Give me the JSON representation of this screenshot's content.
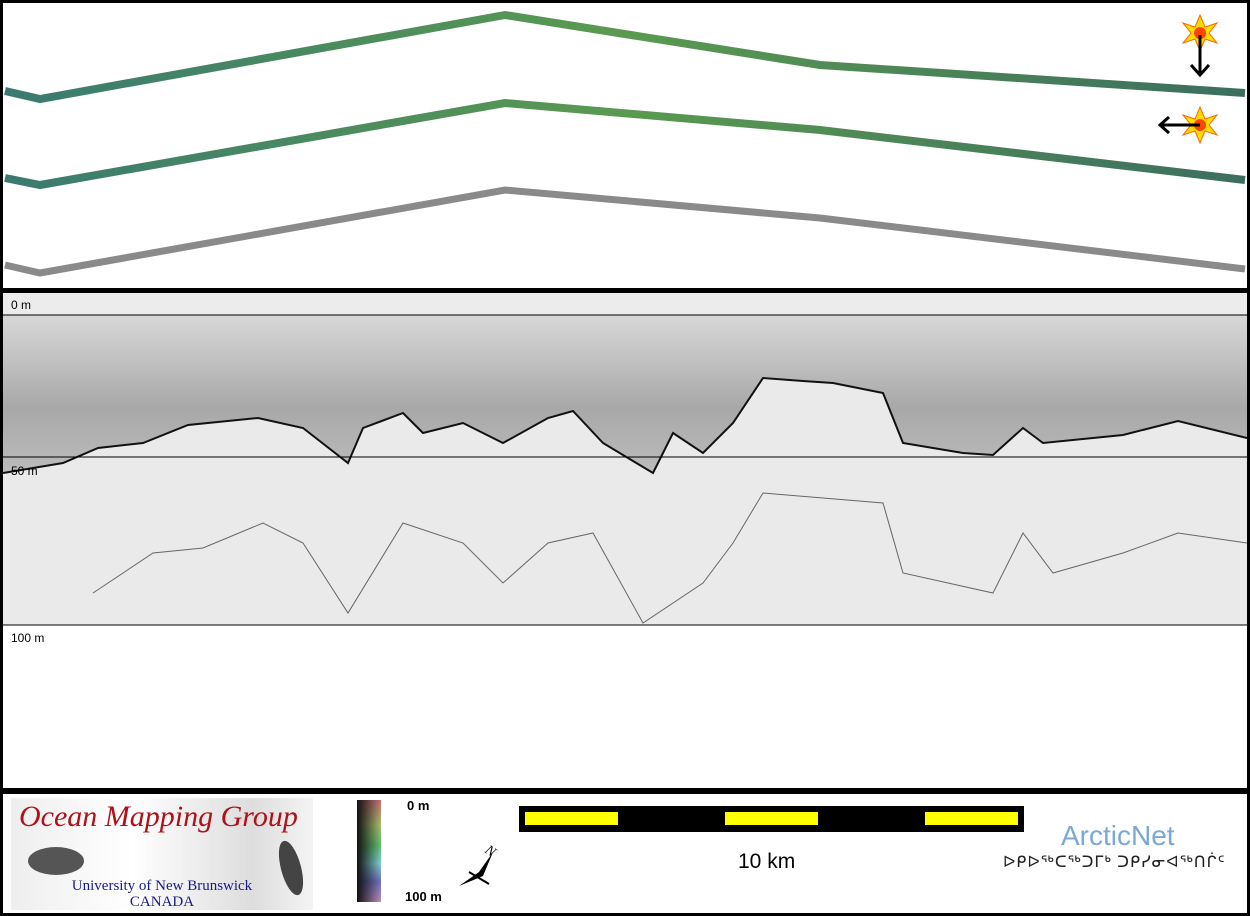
{
  "profile": {
    "depth_labels": [
      "0 m",
      "50 m",
      "100 m"
    ]
  },
  "legend": {
    "organization": "Ocean Mapping Group",
    "university": "University of New Brunswick",
    "country": "CANADA",
    "colorbar_top": "0 m",
    "colorbar_bottom": "100 m",
    "north_label": "N",
    "scale_label": "10 km",
    "partner": "ArcticNet",
    "partner_inuktitut": "ᐅᑭᐅᖅᑕᖅᑐᒥᒃ ᑐᑭᓯᓂᐊᖅᑎᒌᑦ"
  },
  "colors": {
    "scale_fill": "#ffff00",
    "org_red": "#b01018",
    "uni_blue": "#1a1a8a",
    "partner_blue": "#7aa8d8"
  }
}
